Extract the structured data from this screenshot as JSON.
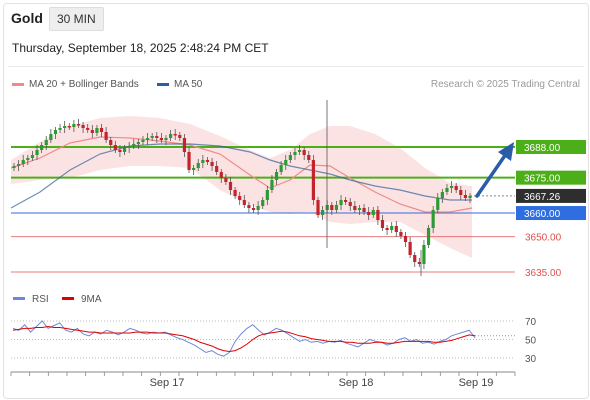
{
  "header": {
    "instrument": "Gold",
    "timeframe": "30 MIN",
    "datetime": "Thursday, September 18, 2025 2:48:24 PM CET"
  },
  "legend": {
    "ma20": "MA 20 + Bollinger Bands",
    "ma50": "MA 50",
    "ma20_color": "#f08a8a",
    "ma50_color": "#2f5f9a"
  },
  "research": "Research © 2025 Trading Central",
  "price_levels": [
    {
      "label": "3688.00",
      "value": 3688,
      "kind": "resistance"
    },
    {
      "label": "3675.00",
      "value": 3675,
      "kind": "resistance"
    },
    {
      "label": "3667.26",
      "value": 3667.26,
      "kind": "last"
    },
    {
      "label": "3660.00",
      "value": 3660,
      "kind": "pivot"
    },
    {
      "label": "3650.00",
      "value": 3650,
      "kind": "support"
    },
    {
      "label": "3635.00",
      "value": 3635,
      "kind": "support"
    }
  ],
  "colors": {
    "bull": "#2e9a34",
    "bear": "#c4232b",
    "resistance": "#4caf1a",
    "pivot": "#2f6ee0",
    "support": "#e05050",
    "last": "#2e2e2e",
    "rsi": "#6a8ad8",
    "rsi_ma": "#e00000",
    "band": "#fbdada"
  },
  "rsi_legend": {
    "rsi": "RSI",
    "ma": "9MA"
  },
  "rsi_ticks": [
    "70",
    "50",
    "30"
  ],
  "x_labels": [
    "Sep 17",
    "Sep 18",
    "Sep 19"
  ]
}
